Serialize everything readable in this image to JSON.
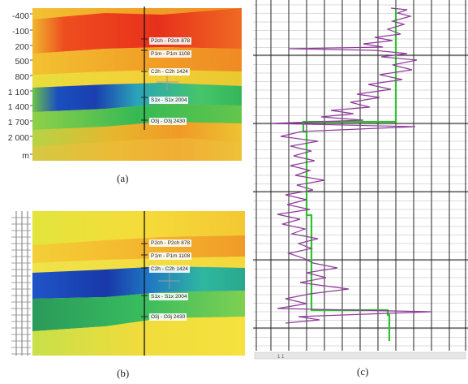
{
  "panel_a": {
    "caption": "(a)",
    "y_ticks": [
      "-400",
      "-100",
      "200",
      "500",
      "800",
      "1 100",
      "1 400",
      "1 700",
      "2 000",
      "m"
    ],
    "horizons": [
      {
        "label": "P2ch - P2ch 878"
      },
      {
        "label": "P1m - P1m 1108"
      },
      {
        "label": "C2h - C2h 1424"
      },
      {
        "label": "S1x - S1x 2004"
      },
      {
        "label": "O3j - O3j 2430"
      }
    ]
  },
  "panel_b": {
    "caption": "(b)",
    "horizons": [
      {
        "label": "P2ch - P2ch 878"
      },
      {
        "label": "P1m - P1m 1108"
      },
      {
        "label": "C2h - C2h 1424"
      },
      {
        "label": "S1x - S1x 2004"
      },
      {
        "label": "O3j - O3j 2430"
      }
    ]
  },
  "panel_c": {
    "caption": "(c)",
    "footer_text": "1 1",
    "curve_colors": {
      "log": "#8e3a9a",
      "blocked": "#2cc22c"
    }
  }
}
